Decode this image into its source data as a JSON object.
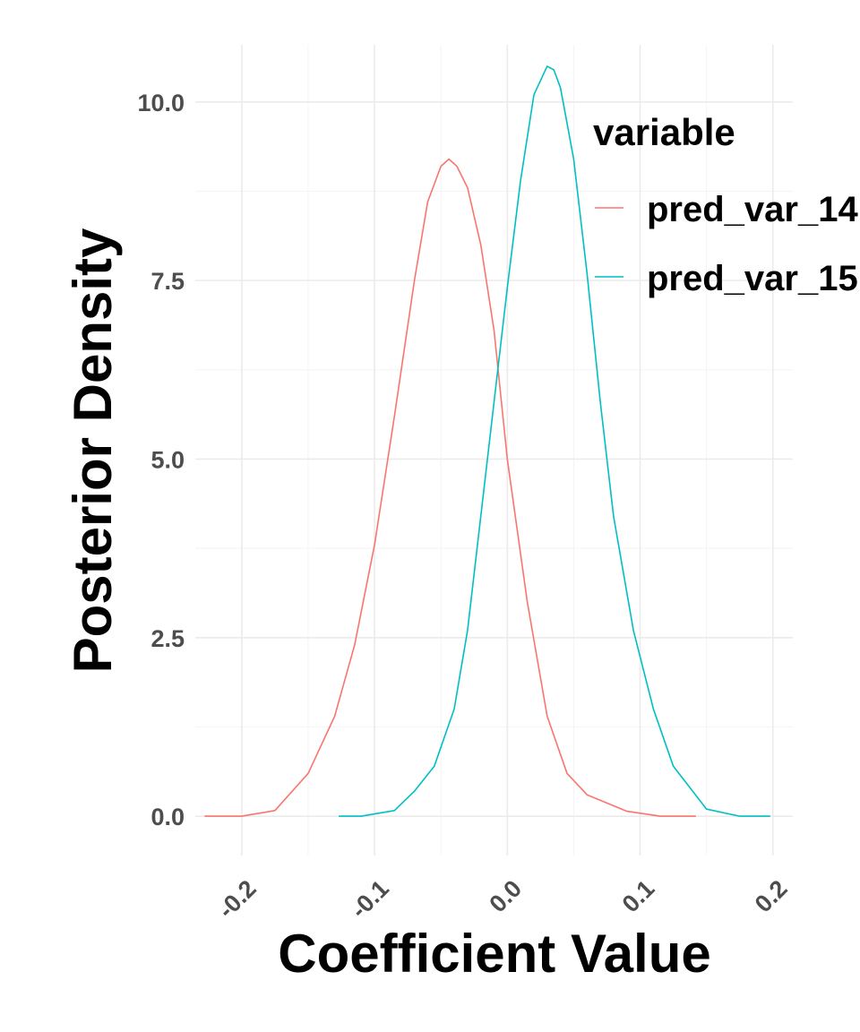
{
  "chart_data": {
    "type": "line",
    "xlabel": "Coefficient Value",
    "ylabel": "Posterior Density",
    "xlim": [
      -0.235,
      0.215
    ],
    "ylim": [
      -0.55,
      10.8
    ],
    "x_ticks": [
      -0.2,
      -0.1,
      0.0,
      0.1,
      0.2
    ],
    "x_tick_labels": [
      "-0.2",
      "-0.1",
      "0.0",
      "0.1",
      "0.2"
    ],
    "y_ticks": [
      0.0,
      2.5,
      5.0,
      7.5,
      10.0
    ],
    "y_tick_labels": [
      "0.0",
      "2.5",
      "5.0",
      "7.5",
      "10.0"
    ],
    "grid": true,
    "legend": {
      "title": "variable",
      "placement": "top-right"
    },
    "series": [
      {
        "name": "pred_var_14",
        "color": "#F8766D",
        "x": [
          -0.228,
          -0.2,
          -0.175,
          -0.15,
          -0.13,
          -0.115,
          -0.1,
          -0.085,
          -0.07,
          -0.06,
          -0.05,
          -0.044,
          -0.038,
          -0.03,
          -0.02,
          -0.01,
          0.0,
          0.015,
          0.03,
          0.045,
          0.06,
          0.09,
          0.115,
          0.142
        ],
        "y": [
          0.0,
          0.0,
          0.08,
          0.6,
          1.4,
          2.4,
          3.8,
          5.6,
          7.5,
          8.6,
          9.1,
          9.2,
          9.1,
          8.8,
          8.0,
          6.8,
          5.0,
          3.0,
          1.4,
          0.6,
          0.3,
          0.07,
          0.0,
          0.0
        ]
      },
      {
        "name": "pred_var_15",
        "color": "#00BFC4",
        "x": [
          -0.127,
          -0.11,
          -0.085,
          -0.07,
          -0.055,
          -0.04,
          -0.03,
          -0.02,
          -0.01,
          0.0,
          0.01,
          0.02,
          0.03,
          0.035,
          0.04,
          0.05,
          0.06,
          0.07,
          0.08,
          0.095,
          0.11,
          0.125,
          0.15,
          0.175,
          0.198
        ],
        "y": [
          0.0,
          0.0,
          0.08,
          0.35,
          0.7,
          1.5,
          2.6,
          4.2,
          5.8,
          7.4,
          8.9,
          10.1,
          10.5,
          10.45,
          10.2,
          9.2,
          7.6,
          5.8,
          4.2,
          2.6,
          1.5,
          0.7,
          0.1,
          0.0,
          0.0
        ]
      }
    ]
  }
}
